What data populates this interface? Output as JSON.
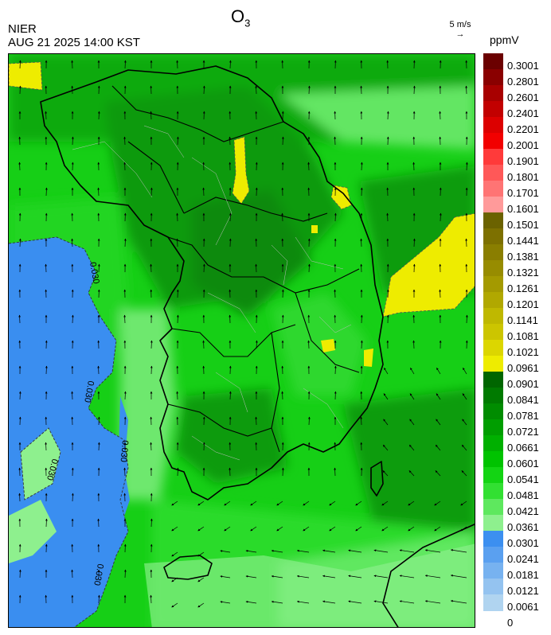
{
  "header": {
    "org": "NIER",
    "datetime": "AUG 21 2025 14:00 KST",
    "title_main": "O",
    "title_sub": "3",
    "wind_reference": "5 m/s",
    "unit": "ppmV"
  },
  "map": {
    "contour_labels": [
      "0.030",
      "0.030",
      "0.030",
      "0.030",
      "0.030"
    ],
    "overlay": [
      "coastlines",
      "province-boundaries",
      "district-boundaries",
      "wind-vectors"
    ]
  },
  "legend": {
    "labels": [
      "0.3001",
      "0.2801",
      "0.2601",
      "0.2401",
      "0.2201",
      "0.2001",
      "0.1901",
      "0.1801",
      "0.1701",
      "0.1601",
      "0.1501",
      "0.1441",
      "0.1381",
      "0.1321",
      "0.1261",
      "0.1201",
      "0.1141",
      "0.1081",
      "0.1021",
      "0.0961",
      "0.0901",
      "0.0841",
      "0.0781",
      "0.0721",
      "0.0661",
      "0.0601",
      "0.0541",
      "0.0481",
      "0.0421",
      "0.0361",
      "0.0301",
      "0.0241",
      "0.0181",
      "0.0121",
      "0.0061",
      "0"
    ],
    "colors": [
      "#6b0000",
      "#8a0000",
      "#a80000",
      "#c20000",
      "#dc0000",
      "#f20000",
      "#ff3a3a",
      "#ff5858",
      "#ff7474",
      "#ff9a9a",
      "#6b6200",
      "#7d7000",
      "#8a7e00",
      "#978c00",
      "#a49a00",
      "#b1a800",
      "#bfb800",
      "#ccc500",
      "#dcd600",
      "#eeec00",
      "#006600",
      "#007a00",
      "#008c00",
      "#009e00",
      "#00b000",
      "#00c300",
      "#13d413",
      "#32e032",
      "#5ee85e",
      "#8ef08e",
      "#3c8ff0",
      "#5aa0f0",
      "#77b2f0",
      "#94c3f0",
      "#b0d4f0"
    ]
  }
}
